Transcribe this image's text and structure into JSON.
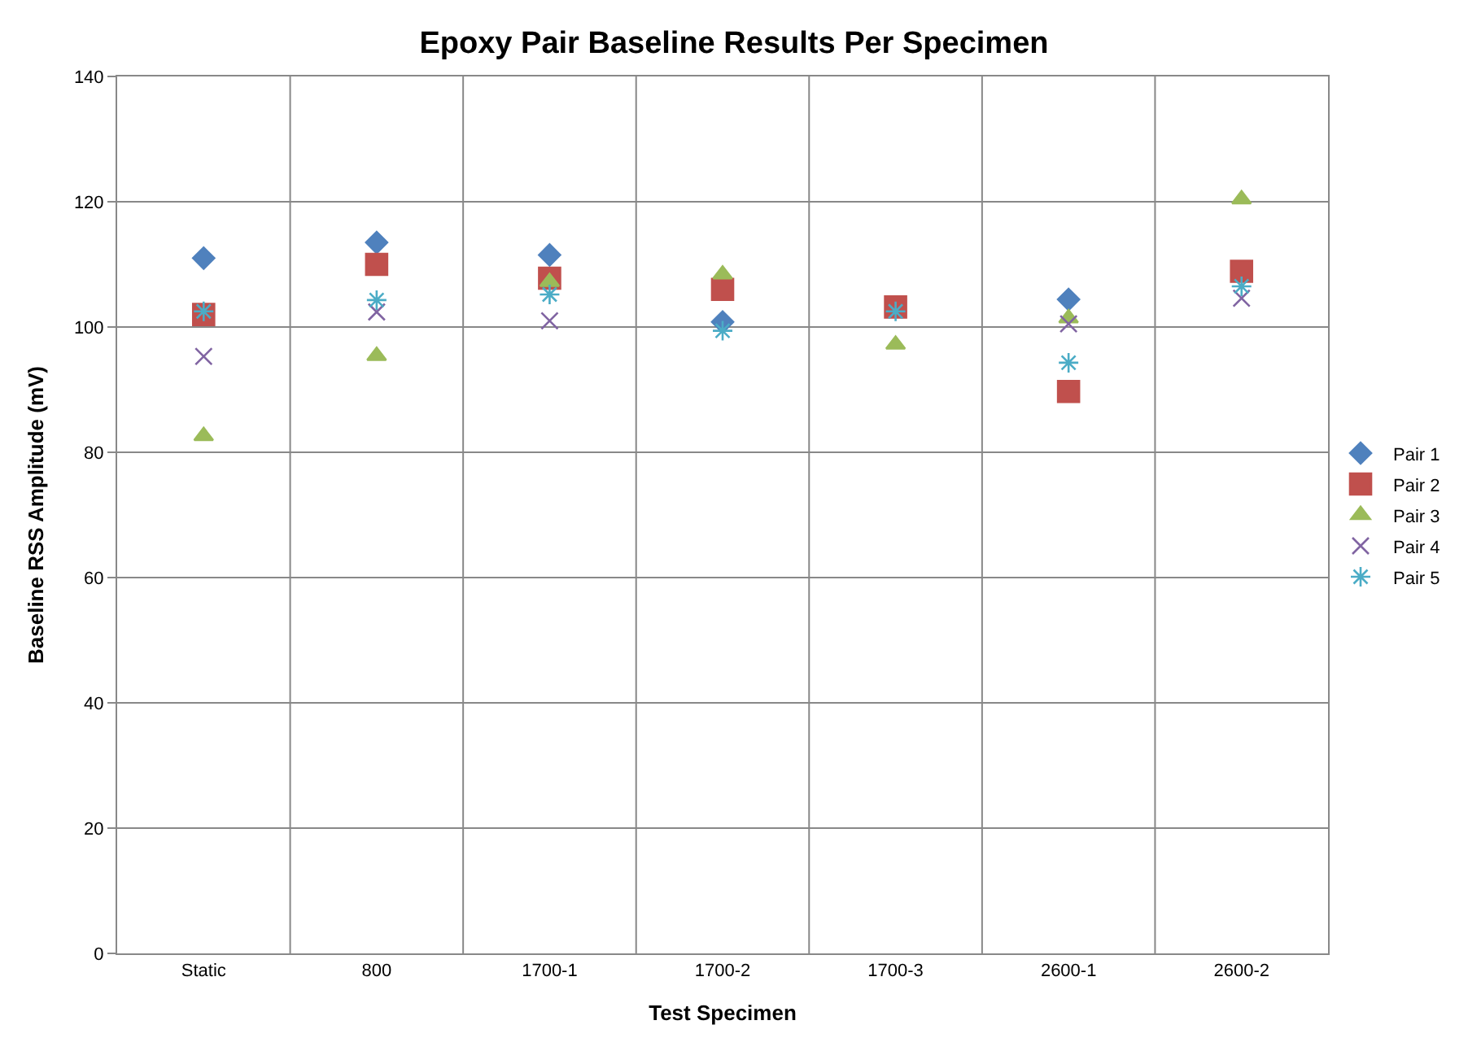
{
  "chart_data": {
    "type": "scatter",
    "title": "Epoxy Pair Baseline Results Per Specimen",
    "xlabel": "Test Specimen",
    "ylabel": "Baseline RSS Amplitude (mV)",
    "categories": [
      "Static",
      "800",
      "1700-1",
      "1700-2",
      "1700-3",
      "2600-1",
      "2600-2"
    ],
    "series": [
      {
        "name": "Pair 1",
        "color": "#4f81bd",
        "marker": "diamond",
        "values": [
          111,
          113.5,
          111.5,
          100.8,
          null,
          104.4,
          null
        ]
      },
      {
        "name": "Pair 2",
        "color": "#c0504d",
        "marker": "square",
        "values": [
          102,
          110,
          107.8,
          106,
          103.2,
          89.7,
          108.9
        ]
      },
      {
        "name": "Pair 3",
        "color": "#9bbb59",
        "marker": "triangle",
        "values": [
          82.6,
          95.4,
          107.2,
          108.4,
          97.2,
          101.4,
          120.4
        ]
      },
      {
        "name": "Pair 4",
        "color": "#8064a2",
        "marker": "cross",
        "values": [
          95.3,
          102.4,
          101,
          null,
          null,
          100.5,
          104.6
        ]
      },
      {
        "name": "Pair 5",
        "color": "#4bacc6",
        "marker": "cross",
        "values": [
          102.5,
          104.3,
          105.2,
          99.4,
          102.5,
          94.3,
          106.5
        ]
      }
    ],
    "ylim": [
      0,
      140
    ],
    "yticks": [
      0,
      20,
      40,
      60,
      80,
      100,
      120,
      140
    ],
    "grid": true,
    "legend": "right"
  }
}
